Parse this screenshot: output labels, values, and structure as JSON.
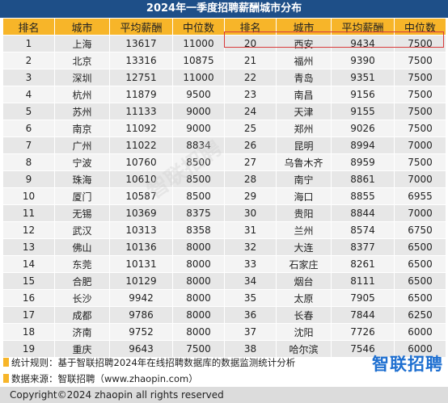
{
  "title": "2024年一季度招聘薪酬城市分布",
  "table": {
    "headers": [
      "排名",
      "城市",
      "平均薪酬",
      "中位数",
      "排名",
      "城市",
      "平均薪酬",
      "中位数"
    ],
    "rows": [
      [
        "1",
        "上海",
        "13617",
        "11000",
        "20",
        "西安",
        "9434",
        "7500"
      ],
      [
        "2",
        "北京",
        "13316",
        "10875",
        "21",
        "福州",
        "9390",
        "7500"
      ],
      [
        "3",
        "深圳",
        "12751",
        "11000",
        "22",
        "青岛",
        "9351",
        "7500"
      ],
      [
        "4",
        "杭州",
        "11879",
        "9500",
        "23",
        "南昌",
        "9156",
        "7500"
      ],
      [
        "5",
        "苏州",
        "11133",
        "9000",
        "24",
        "天津",
        "9155",
        "7500"
      ],
      [
        "6",
        "南京",
        "11092",
        "9000",
        "25",
        "郑州",
        "9026",
        "7500"
      ],
      [
        "7",
        "广州",
        "11022",
        "8834",
        "26",
        "昆明",
        "8994",
        "7000"
      ],
      [
        "8",
        "宁波",
        "10760",
        "8500",
        "27",
        "乌鲁木齐",
        "8959",
        "7500"
      ],
      [
        "9",
        "珠海",
        "10610",
        "8500",
        "28",
        "南宁",
        "8861",
        "7000"
      ],
      [
        "10",
        "厦门",
        "10587",
        "8500",
        "29",
        "海口",
        "8855",
        "6955"
      ],
      [
        "11",
        "无锡",
        "10369",
        "8375",
        "30",
        "贵阳",
        "8844",
        "7000"
      ],
      [
        "12",
        "武汉",
        "10313",
        "8358",
        "31",
        "兰州",
        "8574",
        "6750"
      ],
      [
        "13",
        "佛山",
        "10136",
        "8000",
        "32",
        "大连",
        "8377",
        "6500"
      ],
      [
        "14",
        "东莞",
        "10131",
        "8000",
        "33",
        "石家庄",
        "8261",
        "6500"
      ],
      [
        "15",
        "合肥",
        "10129",
        "8000",
        "34",
        "烟台",
        "8111",
        "6500"
      ],
      [
        "16",
        "长沙",
        "9942",
        "8000",
        "35",
        "太原",
        "7905",
        "6500"
      ],
      [
        "17",
        "成都",
        "9786",
        "8000",
        "36",
        "长春",
        "7844",
        "6250"
      ],
      [
        "18",
        "济南",
        "9752",
        "8000",
        "37",
        "沈阳",
        "7726",
        "6000"
      ],
      [
        "19",
        "重庆",
        "9643",
        "7500",
        "38",
        "哈尔滨",
        "7546",
        "6000"
      ]
    ]
  },
  "watermark": "智联招聘",
  "footer": {
    "note": "统计规则：基于智联招聘2024年在线招聘数据库的数据监测统计分析",
    "source": "数据来源：智联招聘（www.zhaopin.com）",
    "logo": "智联招聘",
    "copyright": "Copyright©2024 zhaopin all rights reserved"
  },
  "colors": {
    "title_bg": "#1e4f88",
    "header_bg": "#f7b529",
    "row_odd": "#e7e7e7",
    "row_even": "#f4f4f4",
    "highlight_border": "#d83a3a",
    "logo": "#1e6fd0"
  }
}
